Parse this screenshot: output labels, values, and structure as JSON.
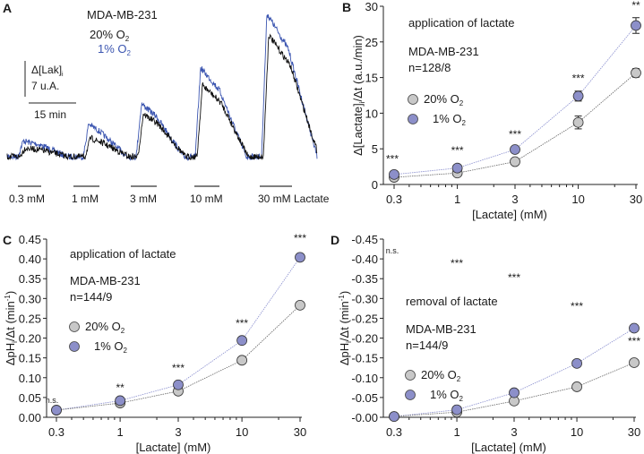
{
  "colors": {
    "black_trace": "#111111",
    "blue_trace": "#3b55b0",
    "marker_20": "#c8c8c8",
    "marker_1": "#8c8fc9",
    "line_20": "#666666",
    "line_1": "#8a8fcf"
  },
  "chart_data": [
    {
      "panel": "A",
      "type": "line",
      "title": "MDA-MB-231",
      "legend": [
        "20% O2",
        "1% O2"
      ],
      "legend_colors": [
        "#111111",
        "#3b55b0"
      ],
      "scalebar_y": "Δ[Lak]i 7 u.A.",
      "scalebar_x": "15 min",
      "applications": [
        "0.3 mM",
        "1 mM",
        "3 mM",
        "10 mM",
        "30 mM Lactate"
      ],
      "series": [
        {
          "name": "20% O2",
          "relative_peaks": [
            0.6,
            1.3,
            3.0,
            5.0,
            8.5
          ]
        },
        {
          "name": "1% O2",
          "relative_peaks": [
            1.1,
            2.3,
            3.7,
            6.2,
            10.0
          ]
        }
      ]
    },
    {
      "panel": "B",
      "type": "scatter",
      "annotation": "application of lactate",
      "cell_line": "MDA-MB-231",
      "n": "n=128/8",
      "xlabel": "[Lactate] (mM)",
      "ylabel": "Δ[Lactate]i/Δt (a.u./min)",
      "x": [
        0.3,
        1,
        3,
        10,
        30
      ],
      "xscale": "log",
      "xticks": [
        "0.3",
        "1",
        "3",
        "10",
        "30"
      ],
      "yticks": [
        "0",
        "5",
        "10",
        "15",
        "25",
        "30"
      ],
      "ylim": [
        0,
        30
      ],
      "series": [
        {
          "name": "20% O2",
          "values": [
            1.0,
            1.6,
            3.2,
            8.7,
            16.3
          ],
          "errors": [
            0.4,
            0.4,
            0.4,
            0.9,
            1.2
          ]
        },
        {
          "name": "1% O2",
          "values": [
            1.4,
            2.3,
            4.9,
            12.4,
            27.3
          ],
          "errors": [
            0.4,
            0.4,
            0.4,
            0.7,
            1.1
          ]
        }
      ],
      "significance": [
        "***",
        "***",
        "***",
        "***",
        "**"
      ],
      "legend_position": "center-left"
    },
    {
      "panel": "C",
      "type": "scatter",
      "annotation": "application of lactate",
      "cell_line": "MDA-MB-231",
      "n": "n=144/9",
      "xlabel": "[Lactate] (mM)",
      "ylabel": "ΔpHi/Δt (min⁻¹)",
      "x": [
        0.3,
        1,
        3,
        10,
        30
      ],
      "xscale": "log",
      "xticks": [
        "0.3",
        "1",
        "3",
        "10",
        "30"
      ],
      "yticks": [
        "0.00",
        "0.05",
        "0.10",
        "0.15",
        "0.20",
        "0.25",
        "0.30",
        "0.35",
        "0.40",
        "0.45"
      ],
      "ylim": [
        0,
        0.45
      ],
      "series": [
        {
          "name": "20% O2",
          "values": [
            0.018,
            0.036,
            0.066,
            0.144,
            0.283
          ],
          "errors": [
            0.004,
            0.004,
            0.004,
            0.005,
            0.008
          ]
        },
        {
          "name": "1% O2",
          "values": [
            0.018,
            0.042,
            0.082,
            0.194,
            0.404
          ],
          "errors": [
            0.004,
            0.004,
            0.006,
            0.005,
            0.009
          ]
        }
      ],
      "significance": [
        "n.s.",
        "**",
        "***",
        "***",
        "***"
      ],
      "legend_position": "center-left"
    },
    {
      "panel": "D",
      "type": "scatter",
      "annotation": "removal of lactate",
      "cell_line": "MDA-MB-231",
      "n": "n=144/9",
      "xlabel": "[Lactate] (mM)",
      "ylabel": "ΔpHi/Δt (min⁻¹)",
      "x": [
        0.3,
        1,
        3,
        10,
        30
      ],
      "xscale": "log",
      "xticks": [
        "0.3",
        "1",
        "3",
        "10",
        "30"
      ],
      "yticks": [
        "-0.00",
        "-0.05",
        "-0.10",
        "-0.15",
        "-0.20",
        "-0.25",
        "-0.30",
        "-0.35",
        "-0.40",
        "-0.45"
      ],
      "ylim": [
        -0.45,
        0
      ],
      "series": [
        {
          "name": "20% O2",
          "values": [
            -0.002,
            -0.013,
            -0.041,
            -0.077,
            -0.138
          ],
          "errors": [
            0.003,
            0.004,
            0.004,
            0.004,
            0.005
          ]
        },
        {
          "name": "1% O2",
          "values": [
            -0.002,
            -0.019,
            -0.062,
            -0.136,
            -0.225
          ],
          "errors": [
            0.003,
            0.004,
            0.005,
            0.005,
            0.005
          ]
        }
      ],
      "significance": [
        "n.s.",
        "***",
        "***",
        "***",
        "***"
      ],
      "legend_position": "bottom-left"
    }
  ],
  "labels": {
    "panel_a": "A",
    "panel_b": "B",
    "panel_c": "C",
    "panel_d": "D",
    "a_title": "MDA-MB-231",
    "a_leg20": "20% O",
    "a_leg1": "1% O",
    "o2_sub": "2",
    "a_scale_y1": "Δ[Lak]",
    "a_scale_y1_sub": "i",
    "a_scale_y2": "7 u.A.",
    "a_scale_x": "15 min",
    "leg20": "20% O",
    "leg1": "1% O"
  }
}
